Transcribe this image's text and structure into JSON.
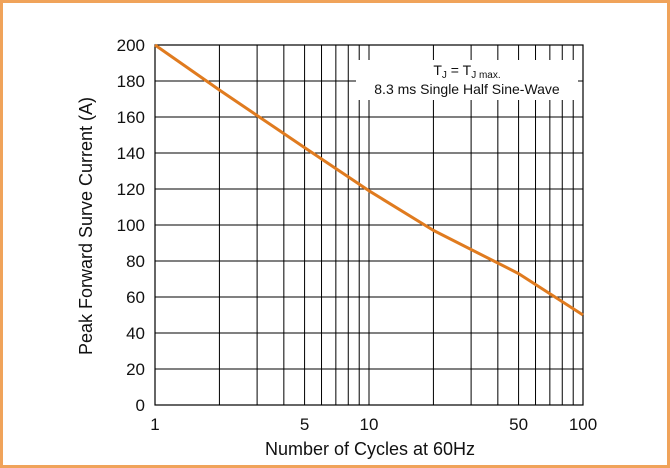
{
  "chart_data": {
    "type": "line",
    "xscale": "log",
    "xlim": [
      1,
      100
    ],
    "ylim": [
      0,
      200
    ],
    "xlabel": "Number of Cycles at 60Hz",
    "ylabel": "Peak Forward Surve Current (A)",
    "x_ticks": [
      1,
      5,
      10,
      50,
      100
    ],
    "y_ticks": [
      0,
      20,
      40,
      60,
      80,
      100,
      120,
      140,
      160,
      180,
      200
    ],
    "grid": true,
    "series": [
      {
        "x": [
          1,
          2,
          5,
          10,
          20,
          50,
          100
        ],
        "y": [
          200,
          175,
          143,
          119,
          97,
          73,
          50
        ]
      }
    ],
    "annotation": {
      "line1": {
        "t1": "T",
        "s1": "J",
        "eq": " = T",
        "s2": "J max."
      },
      "line2": "8.3 ms Single Half Sine-Wave"
    },
    "colors": {
      "line": "#E07B1F",
      "frame": "#F0A35A",
      "grid": "#000000"
    }
  }
}
